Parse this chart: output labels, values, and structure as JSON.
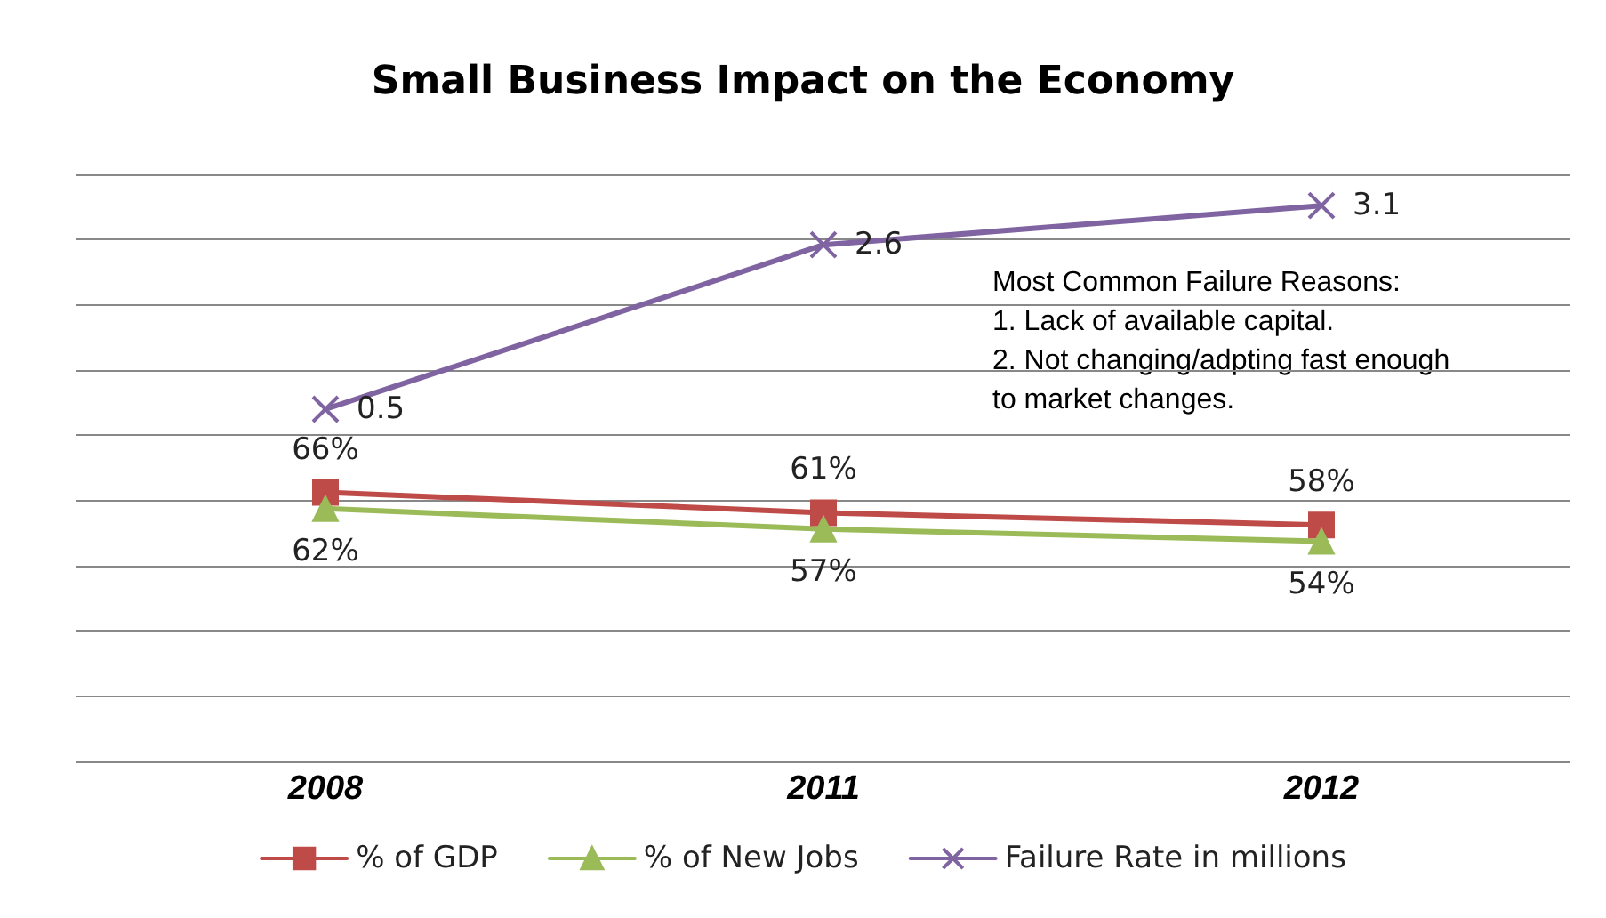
{
  "chart_data": {
    "type": "line",
    "title": "Small Business Impact on the Economy",
    "categories": [
      "2008",
      "2011",
      "2012"
    ],
    "series": [
      {
        "name": "% of GDP",
        "color": "#be4b48",
        "marker": "square",
        "values": [
          66,
          61,
          58
        ],
        "value_labels": [
          "66%",
          "61%",
          "58%"
        ]
      },
      {
        "name": "% of New Jobs",
        "color": "#9bbb59",
        "marker": "triangle",
        "values": [
          62,
          57,
          54
        ],
        "value_labels": [
          "62%",
          "57%",
          "54%"
        ]
      },
      {
        "name": "Failure Rate in millions",
        "color": "#7f64a1",
        "marker": "cross",
        "axis": "y2",
        "values": [
          0.5,
          2.6,
          3.1
        ],
        "value_labels": [
          "0.5",
          "2.6",
          "3.1"
        ]
      }
    ],
    "annotations": [
      "Most Common Failure Reasons:\n1. Lack of available capital.\n2. Not changing/adpting fast enough\nto market changes."
    ],
    "ylim": [
      0,
      144
    ],
    "yticks": [
      {
        "value": 0,
        "label": null
      },
      {
        "value": 16,
        "label": null
      },
      {
        "value": 32,
        "label": null
      },
      {
        "value": 48,
        "label": null
      },
      {
        "value": 64,
        "label": null
      },
      {
        "value": 80,
        "label": null
      },
      {
        "value": 96,
        "label": null
      },
      {
        "value": 112,
        "label": null
      },
      {
        "value": 128,
        "label": null
      },
      {
        "value": 144,
        "label": null
      }
    ],
    "y2lim": [
      -4,
      3.5
    ],
    "grid": "y",
    "legend": "bottom",
    "tick_labels": "x",
    "line_style": "solid"
  }
}
